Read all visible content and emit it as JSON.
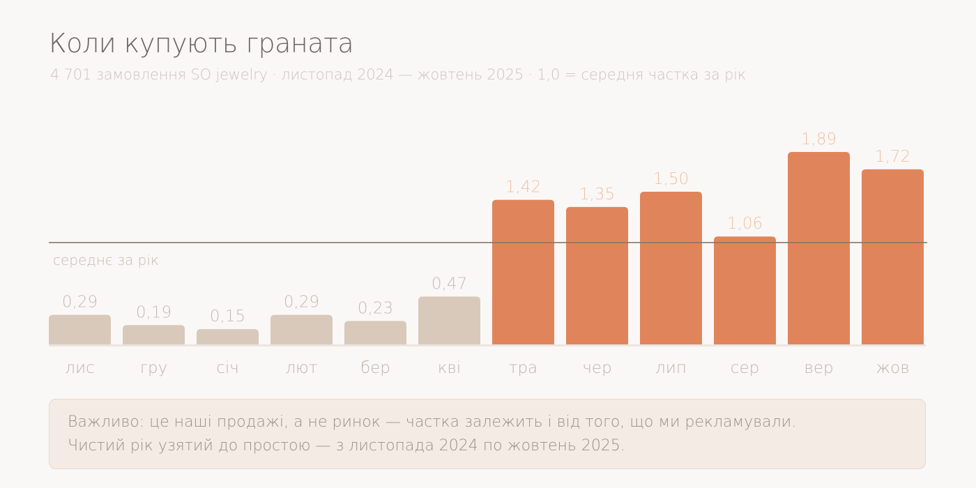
{
  "header": {
    "title": "Коли купують граната",
    "subtitle": "4 701 замовлення SO jewelry · листопад 2024 — жовтень 2025 · 1,0 = середня частка за рік"
  },
  "chart_data": {
    "type": "bar",
    "title": "Коли купують граната",
    "subtitle": "4 701 замовлення SO jewelry · листопад 2024 — жовтень 2025 · 1,0 = середня частка за рік",
    "categories": [
      "лис",
      "гру",
      "січ",
      "лют",
      "бер",
      "кві",
      "тра",
      "чер",
      "лип",
      "сер",
      "вер",
      "жов"
    ],
    "values": [
      0.29,
      0.19,
      0.15,
      0.29,
      0.23,
      0.47,
      1.42,
      1.35,
      1.5,
      1.06,
      1.89,
      1.72
    ],
    "value_labels": [
      "0,29",
      "0,19",
      "0,15",
      "0,29",
      "0,23",
      "0,47",
      "1,42",
      "1,35",
      "1,50",
      "1,06",
      "1,89",
      "1,72"
    ],
    "ylim": [
      0,
      1.89
    ],
    "reference_line": {
      "value": 1.0,
      "label": "середнє за рік"
    },
    "grid": false,
    "legend": "none",
    "colors": {
      "below_average": "#d9c9bb",
      "above_average": "#e0855b",
      "label_below": "#c4bab2",
      "label_above": "#efc1a6",
      "category_label": "#bdb4ae",
      "reference_line": "#8a7668",
      "reference_label": "#c4bab2",
      "baseline": "#ebe5e0"
    }
  },
  "note": {
    "line1": "Важливо: це наші продажі, а не ринок — частка залежить і від того, що ми рекламували.",
    "line2": "Чистий рік узятий до простою — з листопада 2024 по жовтень 2025."
  }
}
